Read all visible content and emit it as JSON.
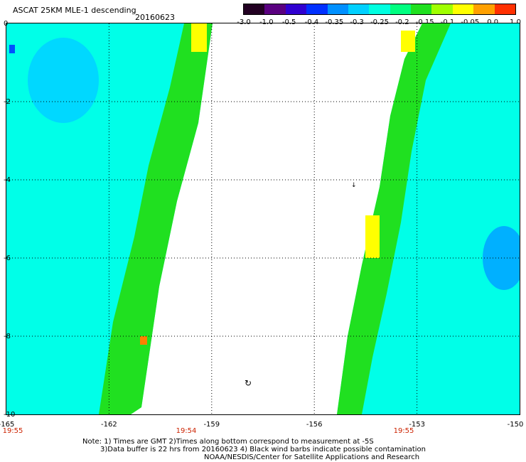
{
  "header": {
    "title": "ASCAT 25KM MLE-1 descending",
    "date": "20160623"
  },
  "colorbar": {
    "labels": [
      "-3.0",
      "-1.0",
      "-0.5",
      "-0.4",
      "-0.35",
      "-0.3",
      "-0.25",
      "-0.2",
      "-0.15",
      "-0.1",
      "-0.05",
      "0.0",
      "1.0"
    ],
    "colors": [
      "#220022",
      "#5a0080",
      "#3000d0",
      "#0030ff",
      "#0090ff",
      "#00d0ff",
      "#00ffe0",
      "#00ff80",
      "#20e020",
      "#a0ff00",
      "#ffff00",
      "#ffa000",
      "#ff3000"
    ]
  },
  "map": {
    "lat_labels": [
      "0",
      "-2",
      "-4",
      "-6",
      "-8",
      "-10"
    ],
    "lon_labels": [
      "-165",
      "-162",
      "-159",
      "-156",
      "-153",
      "-150"
    ],
    "time_labels": [
      "19:55",
      "19:54",
      "19:55"
    ],
    "background": "#ffffff",
    "swath_colors": {
      "cyan": "#00ffe8",
      "light_blue": "#00d8ff",
      "blue": "#00b0ff",
      "green": "#20e020",
      "yellow": "#ffff00",
      "orange": "#ff8000"
    }
  },
  "notes": {
    "line1": "Note: 1) Times are GMT 2)Times along bottom correspond to measurement at -5S",
    "line2": "3)Data buffer is 22 hrs from 20160623 4) Black wind barbs indicate possible contamination",
    "line3": "NOAA/NESDIS/Center for Satellite Applications and Research"
  }
}
